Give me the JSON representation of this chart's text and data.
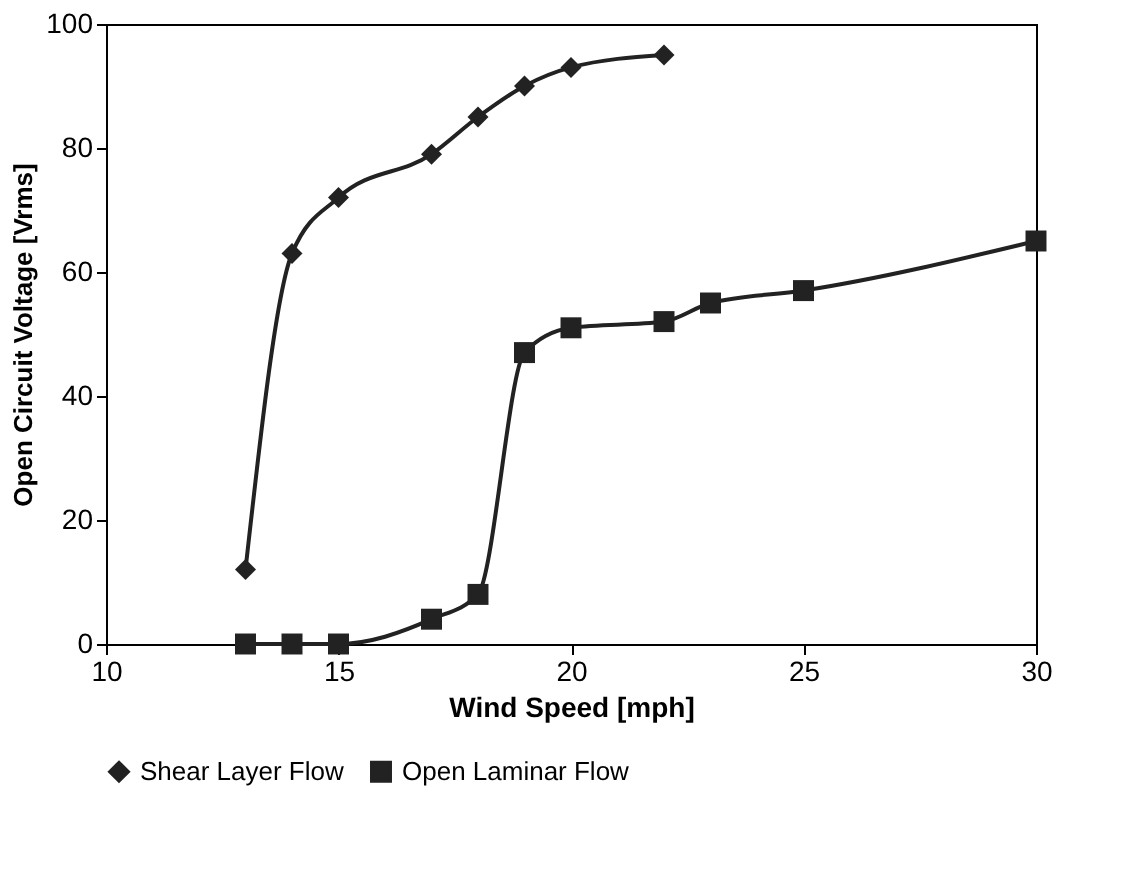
{
  "chart_data": {
    "type": "line",
    "xlabel": "Wind Speed [mph]",
    "ylabel": "Open Circuit Voltage [Vrms]",
    "xlim": [
      10,
      30
    ],
    "xticks": [
      10,
      15,
      20,
      25,
      30
    ],
    "ylim": [
      0,
      100
    ],
    "yticks": [
      0,
      20,
      40,
      60,
      80,
      100
    ],
    "grid": false,
    "legend": "bottom",
    "line_style": "solid",
    "series": [
      {
        "name": "Shear Layer Flow",
        "color": "#222222",
        "marker": "diamond",
        "x": [
          13,
          14,
          15,
          17,
          18,
          19,
          20,
          22
        ],
        "values": [
          12,
          63,
          72,
          79,
          85,
          90,
          93,
          95
        ]
      },
      {
        "name": "Open Laminar Flow",
        "color": "#222222",
        "marker": "square",
        "x": [
          13,
          14,
          15,
          17,
          18,
          19,
          20,
          22,
          23,
          25,
          30
        ],
        "values": [
          0,
          0,
          0,
          4,
          8,
          47,
          51,
          52,
          55,
          57,
          65
        ]
      }
    ]
  }
}
